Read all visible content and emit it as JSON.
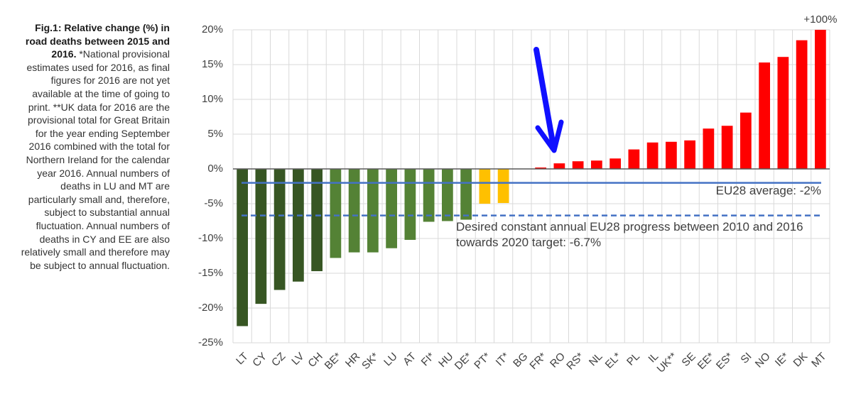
{
  "chart_data": {
    "type": "bar",
    "title": "Fig.1: Relative change (%) in road deaths between 2015 and 2016.",
    "subtitle": "*National provisional estimates used for 2016, as final figures for 2016 are not yet available at the time of going to print. **UK data for 2016 are the provisional total for Great Britain for the year ending September 2016 combined with the total for Northern Ireland for the calendar year 2016. Annual numbers of deaths in LU and MT are particularly small and, therefore, subject to substantial annual fluctuation. Annual numbers of deaths in CY and EE are also relatively small and therefore may be subject to annual fluctuation.",
    "categories": [
      "LT",
      "CY",
      "CZ",
      "LV",
      "CH",
      "BE*",
      "HR",
      "SK*",
      "LU",
      "AT",
      "FI*",
      "HU",
      "DE*",
      "PT*",
      "IT*",
      "BG",
      "FR*",
      "RO",
      "RS*",
      "NL",
      "EL*",
      "PL",
      "IL",
      "UK**",
      "SE",
      "EE*",
      "ES*",
      "SI",
      "NO",
      "IE*",
      "DK",
      "MT"
    ],
    "values": [
      -22.6,
      -19.4,
      -17.4,
      -16.2,
      -14.7,
      -12.8,
      -12.0,
      -12.0,
      -11.4,
      -10.2,
      -7.6,
      -7.5,
      -7.3,
      -5.0,
      -4.9,
      0,
      0.2,
      0.8,
      1.1,
      1.2,
      1.5,
      2.8,
      3.8,
      3.9,
      4.1,
      5.8,
      6.2,
      8.1,
      15.3,
      16.1,
      18.5,
      100
    ],
    "value_labels": [
      null,
      null,
      null,
      null,
      null,
      null,
      null,
      null,
      null,
      null,
      null,
      null,
      null,
      null,
      null,
      null,
      null,
      null,
      null,
      null,
      null,
      null,
      null,
      null,
      null,
      null,
      null,
      null,
      null,
      null,
      null,
      "+100%"
    ],
    "colors": [
      "#375623",
      "#375623",
      "#375623",
      "#375623",
      "#375623",
      "#548235",
      "#548235",
      "#548235",
      "#548235",
      "#548235",
      "#548235",
      "#548235",
      "#548235",
      "#ffc000",
      "#ffc000",
      "#ff0000",
      "#ff0000",
      "#ff0000",
      "#ff0000",
      "#ff0000",
      "#ff0000",
      "#ff0000",
      "#ff0000",
      "#ff0000",
      "#ff0000",
      "#ff0000",
      "#ff0000",
      "#ff0000",
      "#ff0000",
      "#ff0000",
      "#ff0000",
      "#ff0000"
    ],
    "ylim": [
      -25,
      20
    ],
    "yticks": [
      {
        "value": 20,
        "label": "20%"
      },
      {
        "value": 15,
        "label": "15%"
      },
      {
        "value": 10,
        "label": "10%"
      },
      {
        "value": 5,
        "label": "5%"
      },
      {
        "value": 0,
        "label": "0%"
      },
      {
        "value": -5,
        "label": "-5%"
      },
      {
        "value": -10,
        "label": "-10%"
      },
      {
        "value": -15,
        "label": "-15%"
      },
      {
        "value": -20,
        "label": "-20%"
      },
      {
        "value": -25,
        "label": "-25%"
      }
    ],
    "grid": true,
    "reference_lines": [
      {
        "value": -2,
        "label": [
          "EU28 average: -2%"
        ],
        "style": "solid",
        "color": "#4472c4"
      },
      {
        "value": -6.7,
        "label": [
          "Desired constant annual EU28 progress between 2010 and 2016",
          "towards 2020 target: -6.7%"
        ],
        "style": "dashed",
        "color": "#4472c4"
      }
    ]
  }
}
